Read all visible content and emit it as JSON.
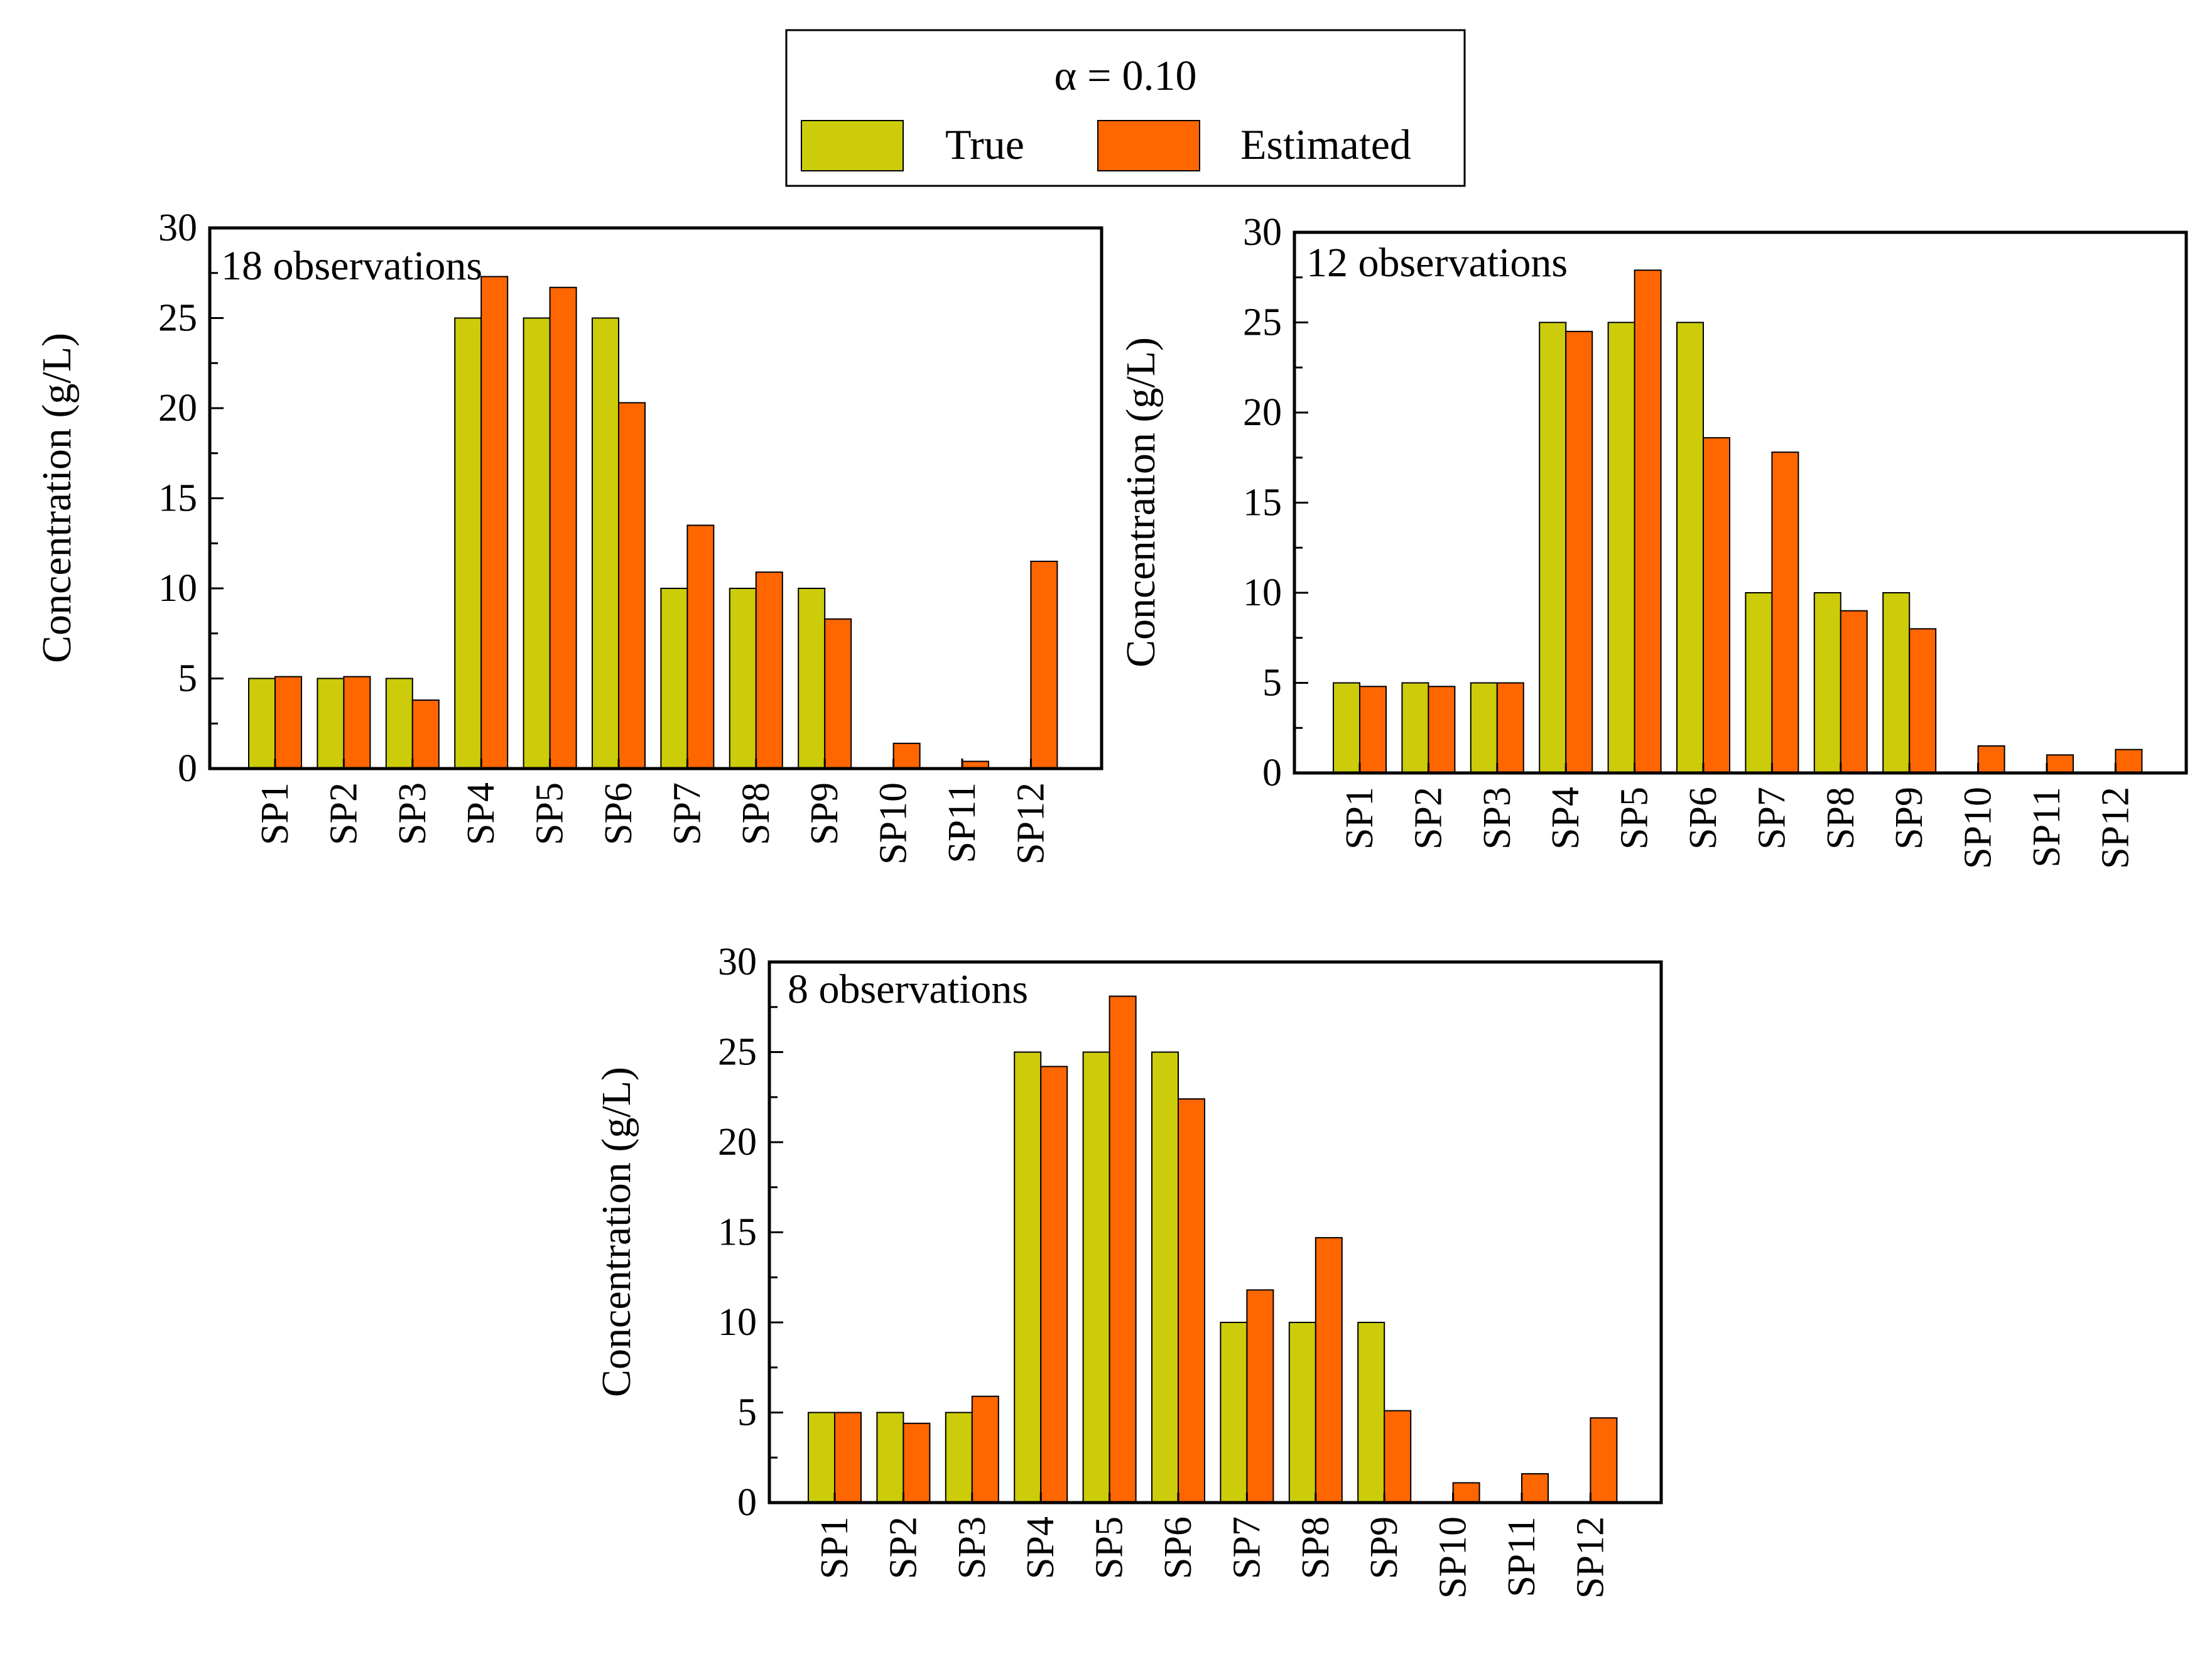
{
  "legend": {
    "title": "α = 0.10",
    "items": [
      {
        "label": "True",
        "color": "#cccc0a"
      },
      {
        "label": "Estimated",
        "color": "#ff6600"
      }
    ]
  },
  "chart_data": [
    {
      "type": "bar",
      "annotation": "18 observations",
      "categories": [
        "SP1",
        "SP2",
        "SP3",
        "SP4",
        "SP5",
        "SP6",
        "SP7",
        "SP8",
        "SP9",
        "SP10",
        "SP11",
        "SP12"
      ],
      "series": [
        {
          "name": "True",
          "values": [
            5,
            5,
            5,
            25,
            25,
            25,
            10,
            10,
            10,
            0,
            0,
            0
          ]
        },
        {
          "name": "Estimated",
          "values": [
            5.1,
            5.1,
            3.8,
            27.3,
            26.7,
            20.3,
            13.5,
            10.9,
            8.3,
            1.4,
            0.4,
            11.5
          ]
        }
      ],
      "xlabel": "",
      "ylabel": "Concentration (g/L)",
      "ylim": [
        0,
        30
      ],
      "yticks": [
        "0",
        "5",
        "10",
        "15",
        "20",
        "25",
        "30"
      ]
    },
    {
      "type": "bar",
      "annotation": "12 observations",
      "categories": [
        "SP1",
        "SP2",
        "SP3",
        "SP4",
        "SP5",
        "SP6",
        "SP7",
        "SP8",
        "SP9",
        "SP10",
        "SP11",
        "SP12"
      ],
      "series": [
        {
          "name": "True",
          "values": [
            5,
            5,
            5,
            25,
            25,
            25,
            10,
            10,
            10,
            0,
            0,
            0
          ]
        },
        {
          "name": "Estimated",
          "values": [
            4.8,
            4.8,
            5,
            24.5,
            27.9,
            18.6,
            17.8,
            9,
            8,
            1.5,
            1,
            1.3
          ]
        }
      ],
      "xlabel": "",
      "ylabel": "Concentration (g/L)",
      "ylim": [
        0,
        30
      ],
      "yticks": [
        "0",
        "5",
        "10",
        "15",
        "20",
        "25",
        "30"
      ]
    },
    {
      "type": "bar",
      "annotation": "8 observations",
      "categories": [
        "SP1",
        "SP2",
        "SP3",
        "SP4",
        "SP5",
        "SP6",
        "SP7",
        "SP8",
        "SP9",
        "SP10",
        "SP11",
        "SP12"
      ],
      "series": [
        {
          "name": "True",
          "values": [
            5,
            5,
            5,
            25,
            25,
            25,
            10,
            10,
            10,
            0,
            0,
            0
          ]
        },
        {
          "name": "Estimated",
          "values": [
            5,
            4.4,
            5.9,
            24.2,
            28.1,
            22.4,
            11.8,
            14.7,
            5.1,
            1.1,
            1.6,
            4.7
          ]
        }
      ],
      "xlabel": "",
      "ylabel": "Concentration (g/L)",
      "ylim": [
        0,
        30
      ],
      "yticks": [
        "0",
        "5",
        "10",
        "15",
        "20",
        "25",
        "30"
      ]
    }
  ]
}
